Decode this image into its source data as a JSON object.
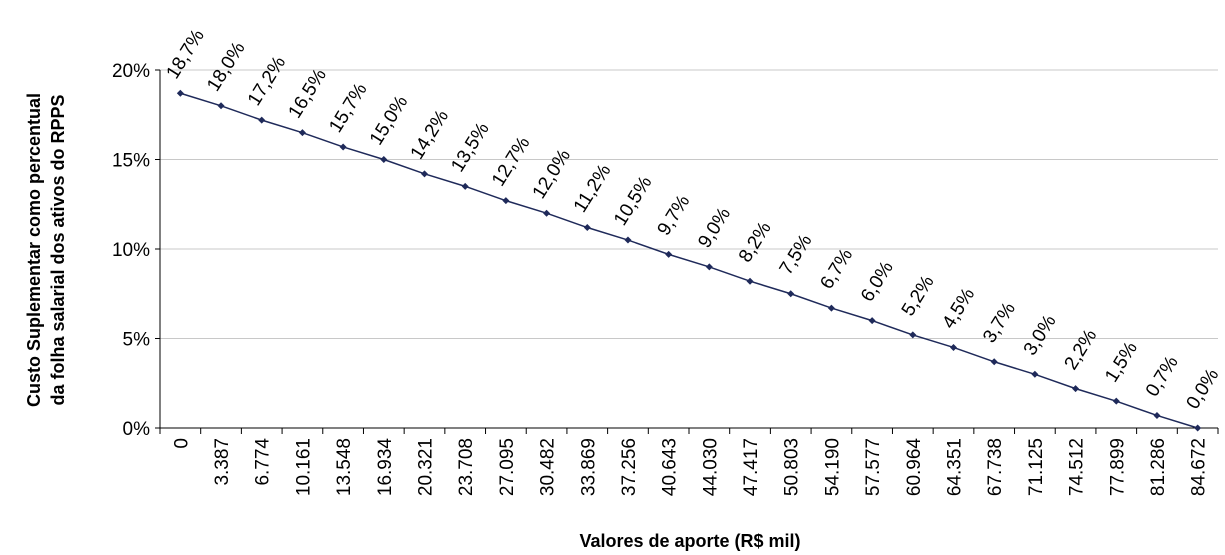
{
  "chart_data": {
    "type": "line",
    "ylabel": [
      "Custo Suplementar como percentual",
      "da folha salarial dos ativos do RPPS"
    ],
    "xlabel": "Valores de aporte (R$ mil)",
    "categories": [
      "0",
      "3.387",
      "6.774",
      "10.161",
      "13.548",
      "16.934",
      "20.321",
      "23.708",
      "27.095",
      "30.482",
      "33.869",
      "37.256",
      "40.643",
      "44.030",
      "47.417",
      "50.803",
      "54.190",
      "57.577",
      "60.964",
      "64.351",
      "67.738",
      "71.125",
      "74.512",
      "77.899",
      "81.286",
      "84.672"
    ],
    "series": [
      {
        "color": "#1f2a5a",
        "values": [
          18.7,
          18.0,
          17.2,
          16.5,
          15.7,
          15.0,
          14.2,
          13.5,
          12.7,
          12.0,
          11.2,
          10.5,
          9.7,
          9.0,
          8.2,
          7.5,
          6.7,
          6.0,
          5.2,
          4.5,
          3.7,
          3.0,
          2.2,
          1.5,
          0.7,
          0.0
        ],
        "value_labels": [
          "18,7%",
          "18,0%",
          "17,2%",
          "16,5%",
          "15,7%",
          "15,0%",
          "14,2%",
          "13,5%",
          "12,7%",
          "12,0%",
          "11,2%",
          "10,5%",
          "9,7%",
          "9,0%",
          "8,2%",
          "7,5%",
          "6,7%",
          "6,0%",
          "5,2%",
          "4,5%",
          "3,7%",
          "3,0%",
          "2,2%",
          "1,5%",
          "0,7%",
          "0,0%"
        ]
      }
    ],
    "ylim": [
      0,
      20
    ],
    "yticks": [
      {
        "value": 0,
        "label": "0%"
      },
      {
        "value": 5,
        "label": "5%"
      },
      {
        "value": 10,
        "label": "10%"
      },
      {
        "value": 15,
        "label": "15%"
      },
      {
        "value": 20,
        "label": "20%"
      }
    ],
    "grid": true
  }
}
